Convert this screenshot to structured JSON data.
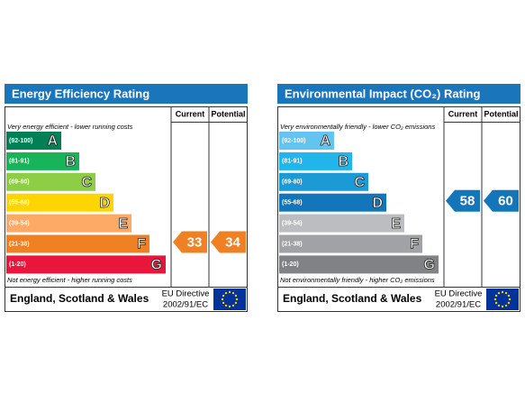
{
  "panels": [
    {
      "title": "Energy Efficiency Rating",
      "columns": [
        "Current",
        "Potential"
      ],
      "top_note": "Very energy efficient - lower running costs",
      "bands": [
        {
          "range": "(92-100)",
          "letter": "A",
          "color": "#008054"
        },
        {
          "range": "(81-91)",
          "letter": "B",
          "color": "#19b459"
        },
        {
          "range": "(69-80)",
          "letter": "C",
          "color": "#8dce46"
        },
        {
          "range": "(55-68)",
          "letter": "D",
          "color": "#ffd500"
        },
        {
          "range": "(39-54)",
          "letter": "E",
          "color": "#fcaa65"
        },
        {
          "range": "(21-38)",
          "letter": "F",
          "color": "#ef8023"
        },
        {
          "range": "(1-20)",
          "letter": "G",
          "color": "#e9153b"
        }
      ],
      "bottom_note": "Not energy efficient - higher running costs",
      "current": 33,
      "potential": 34,
      "footer": {
        "region": "England, Scotland & Wales",
        "directive": "EU Directive",
        "directive_code": "2002/91/EC"
      }
    },
    {
      "title": "Environmental Impact (CO₂) Rating",
      "columns": [
        "Current",
        "Potential"
      ],
      "top_note": "Very environmentally friendly - lower CO₂ emissions",
      "bands": [
        {
          "range": "(92-100)",
          "letter": "A",
          "color": "#63c5ef"
        },
        {
          "range": "(81-91)",
          "letter": "B",
          "color": "#22b5eb"
        },
        {
          "range": "(69-80)",
          "letter": "C",
          "color": "#1c9ad6"
        },
        {
          "range": "(55-68)",
          "letter": "D",
          "color": "#1376ba"
        },
        {
          "range": "(39-54)",
          "letter": "E",
          "color": "#bcbdc0"
        },
        {
          "range": "(21-38)",
          "letter": "F",
          "color": "#a1a2a5"
        },
        {
          "range": "(1-20)",
          "letter": "G",
          "color": "#808285"
        }
      ],
      "bottom_note": "Not environmentally friendly - higher CO₂ emissions",
      "current": 58,
      "potential": 60,
      "footer": {
        "region": "England, Scotland & Wales",
        "directive": "EU Directive",
        "directive_code": "2002/91/EC"
      }
    }
  ]
}
